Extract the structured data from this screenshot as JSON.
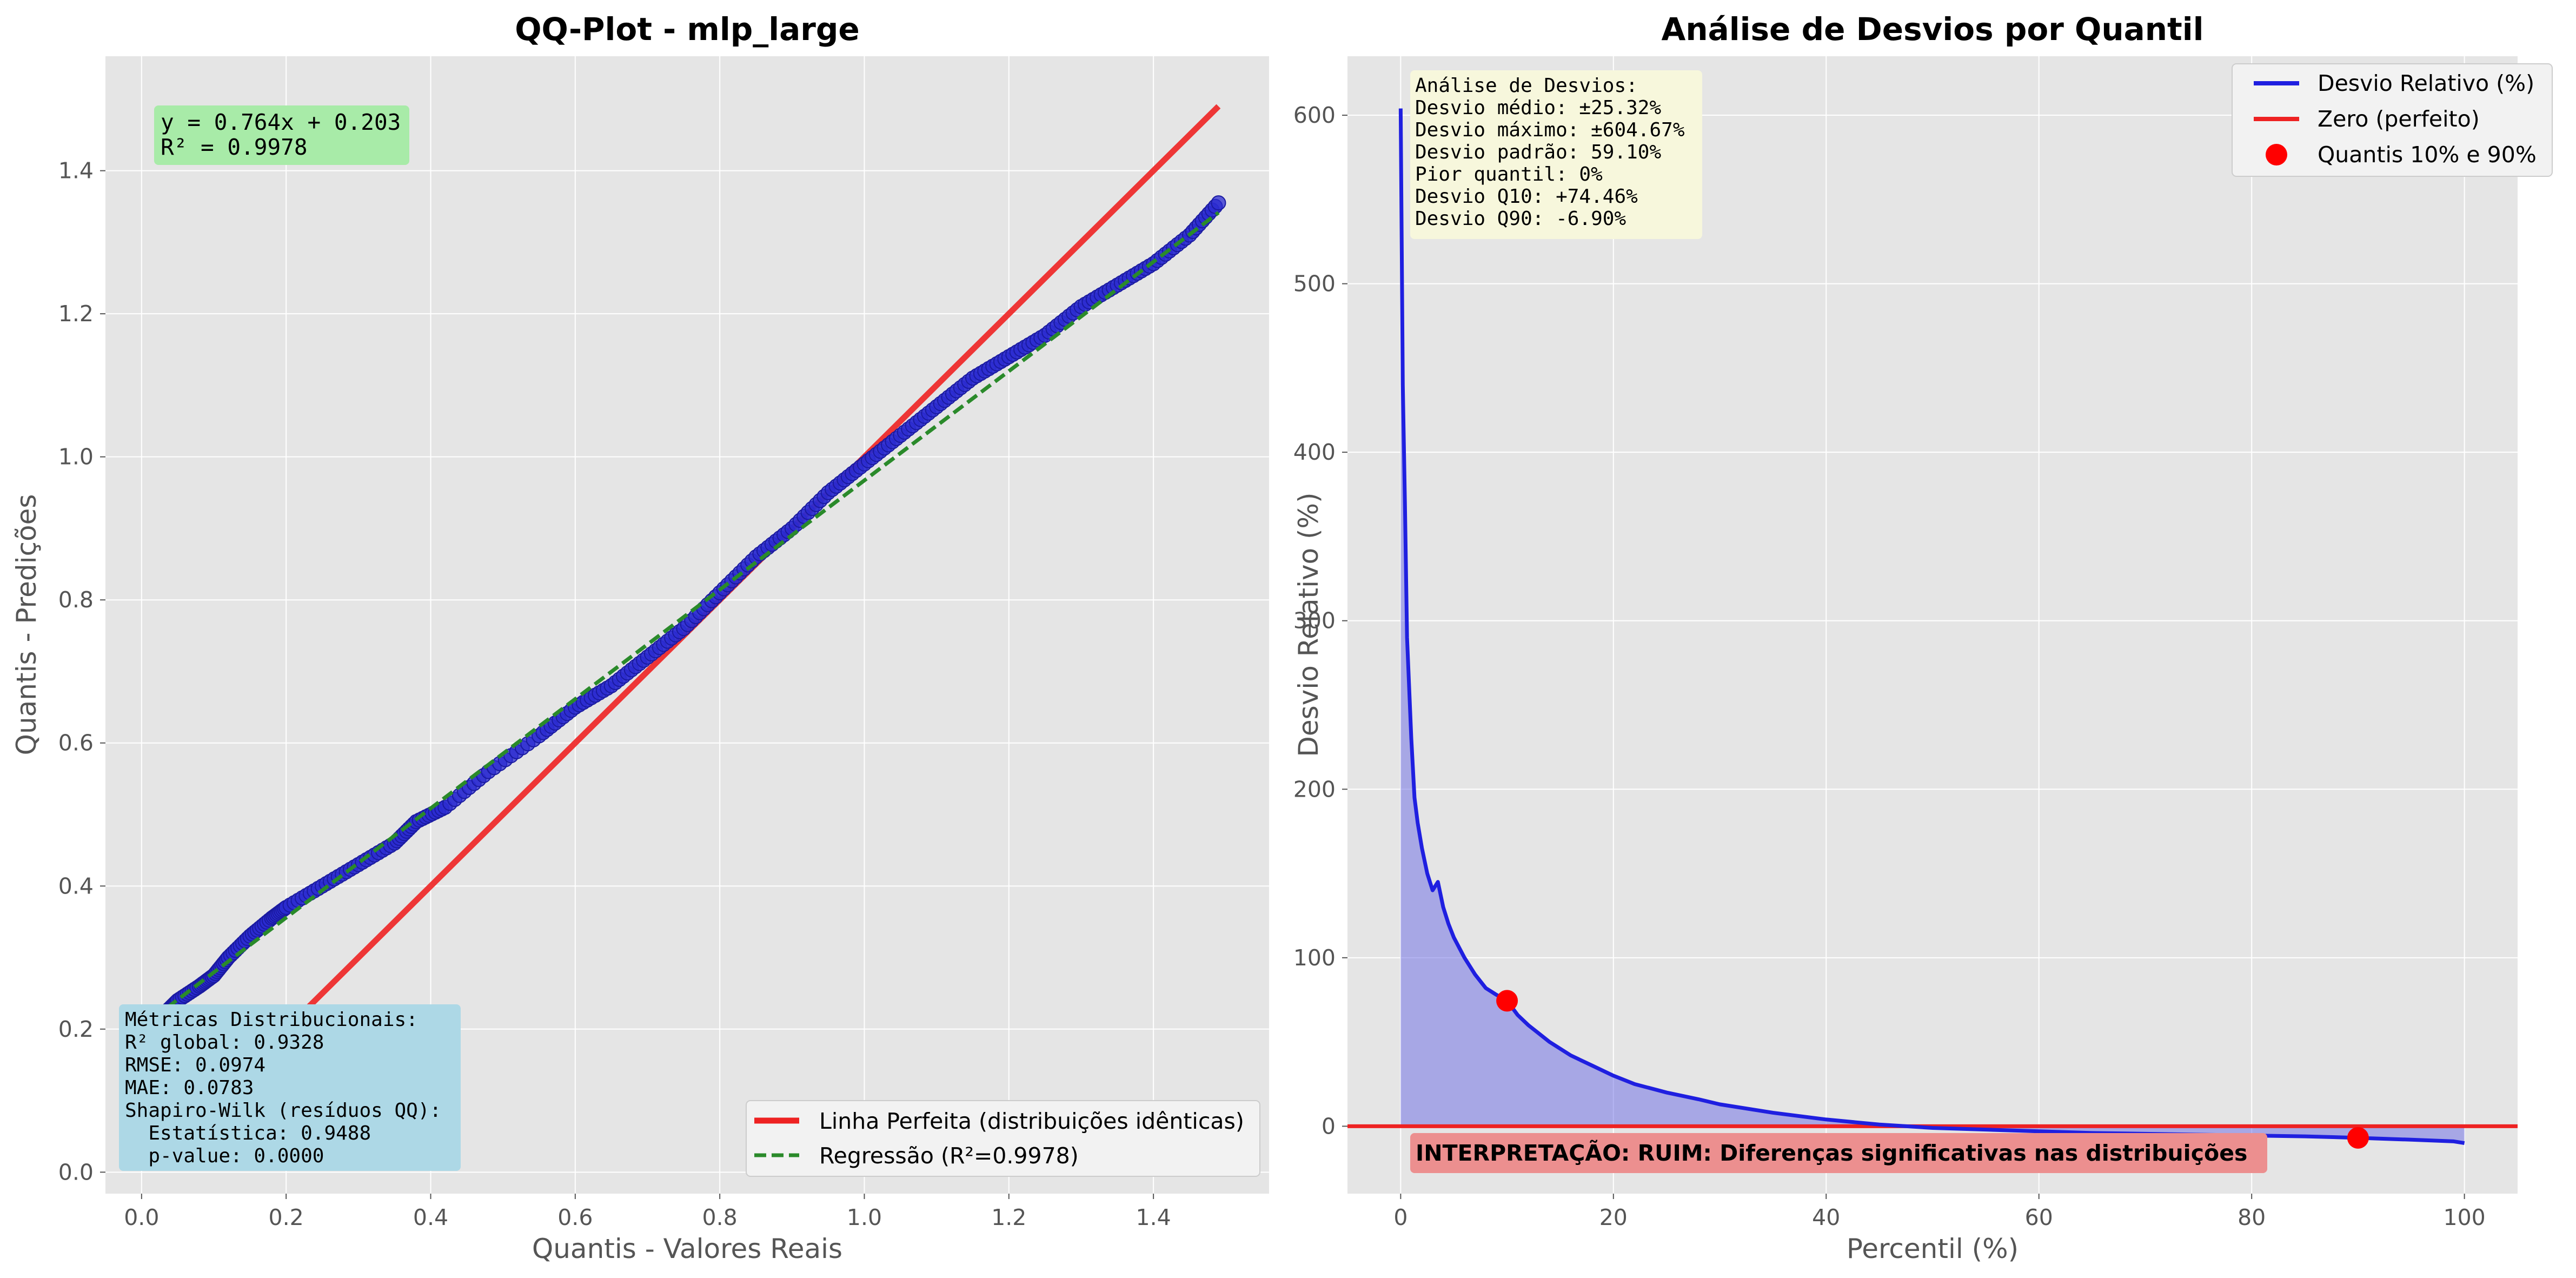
{
  "chart_data": [
    {
      "type": "scatter",
      "title": "QQ-Plot - mlp_large",
      "xlabel": "Quantis - Valores Reais",
      "ylabel": "Quantis - Predições",
      "xlim": [
        -0.05,
        1.56
      ],
      "ylim": [
        -0.03,
        1.56
      ],
      "xticks": [
        "0.0",
        "0.2",
        "0.4",
        "0.6",
        "0.8",
        "1.0",
        "1.2",
        "1.4"
      ],
      "yticks": [
        "0.0",
        "0.2",
        "0.4",
        "0.6",
        "0.8",
        "1.0",
        "1.2",
        "1.4"
      ],
      "grid": true,
      "legend_position": "bottom-right",
      "equation_box": [
        "y = 0.764x + 0.203",
        "R² = 0.9978"
      ],
      "metrics_box": [
        "Métricas Distribucionais:",
        "R² global: 0.9328",
        "RMSE: 0.0974",
        "MAE: 0.0783",
        "Shapiro-Wilk (resíduos QQ):",
        "  Estatística: 0.9488",
        "  p-value: 0.0000"
      ],
      "series": [
        {
          "name": "Quantis",
          "color": "#2b2bd0",
          "points": [
            [
              0.035,
              0.225
            ],
            [
              0.05,
              0.24
            ],
            [
              0.08,
              0.26
            ],
            [
              0.1,
              0.275
            ],
            [
              0.12,
              0.3
            ],
            [
              0.15,
              0.33
            ],
            [
              0.18,
              0.355
            ],
            [
              0.2,
              0.37
            ],
            [
              0.25,
              0.4
            ],
            [
              0.3,
              0.43
            ],
            [
              0.35,
              0.46
            ],
            [
              0.38,
              0.49
            ],
            [
              0.42,
              0.51
            ],
            [
              0.48,
              0.56
            ],
            [
              0.55,
              0.61
            ],
            [
              0.6,
              0.65
            ],
            [
              0.65,
              0.68
            ],
            [
              0.7,
              0.72
            ],
            [
              0.75,
              0.76
            ],
            [
              0.8,
              0.81
            ],
            [
              0.85,
              0.86
            ],
            [
              0.9,
              0.9
            ],
            [
              0.95,
              0.95
            ],
            [
              1.0,
              0.99
            ],
            [
              1.05,
              1.03
            ],
            [
              1.1,
              1.07
            ],
            [
              1.15,
              1.11
            ],
            [
              1.2,
              1.14
            ],
            [
              1.25,
              1.17
            ],
            [
              1.3,
              1.21
            ],
            [
              1.35,
              1.24
            ],
            [
              1.4,
              1.27
            ],
            [
              1.45,
              1.31
            ],
            [
              1.49,
              1.355
            ]
          ]
        },
        {
          "name": "Linha Perfeita (distribuições idênticas)",
          "color": "#ee2222",
          "line": [
            [
              0.035,
              0.035
            ],
            [
              1.49,
              1.49
            ]
          ]
        },
        {
          "name": "Regressão (R²=0.9978)",
          "color": "#2a8a2a",
          "line": [
            [
              0.035,
              0.2297
            ],
            [
              1.49,
              1.3414
            ]
          ]
        }
      ]
    },
    {
      "type": "line",
      "title": "Análise de Desvios por Quantil",
      "xlabel": "Percentil (%)",
      "ylabel": "Desvio Relativo (%)",
      "xlim": [
        -5,
        105
      ],
      "ylim": [
        -40,
        635
      ],
      "xticks": [
        "0",
        "20",
        "40",
        "60",
        "80",
        "100"
      ],
      "yticks": [
        "0",
        "100",
        "200",
        "300",
        "400",
        "500",
        "600"
      ],
      "grid": true,
      "legend_position": "top-right",
      "stats_box": [
        "Análise de Desvios:",
        "Desvio médio: ±25.32%",
        "Desvio máximo: ±604.67%",
        "Desvio padrão: 59.10%",
        "Pior quantil: 0%",
        "Desvio Q10: +74.46%",
        "Desvio Q90: -6.90%"
      ],
      "interpretation": "INTERPRETAÇÃO: RUIM: Diferenças significativas nas distribuições",
      "series": [
        {
          "name": "Desvio Relativo (%)",
          "color": "#1f1fe0",
          "x": [
            0,
            0.2,
            0.4,
            0.6,
            0.8,
            1,
            1.3,
            1.6,
            2,
            2.5,
            3,
            3.5,
            4,
            4.5,
            5,
            6,
            7,
            8,
            9,
            10,
            11,
            12,
            13,
            14,
            15,
            16,
            18,
            20,
            22,
            25,
            28,
            30,
            35,
            40,
            45,
            50,
            55,
            60,
            65,
            70,
            75,
            80,
            85,
            90,
            95,
            99,
            100
          ],
          "y": [
            604,
            440,
            370,
            290,
            260,
            230,
            195,
            180,
            165,
            150,
            140,
            145,
            130,
            120,
            112,
            100,
            90,
            82,
            78,
            74.46,
            66,
            60,
            55,
            50,
            46,
            42,
            36,
            30,
            25,
            20,
            16,
            13,
            8,
            4,
            1,
            -1,
            -2,
            -3,
            -4,
            -4.5,
            -5,
            -5.5,
            -6,
            -6.9,
            -8,
            -9,
            -10
          ]
        },
        {
          "name": "Zero (perfeito)",
          "color": "#ee2222",
          "y_const": 0
        },
        {
          "name": "Quantis 10% e 90%",
          "color": "#ff0000",
          "markers": [
            [
              10,
              74.46
            ],
            [
              90,
              -6.9
            ]
          ]
        }
      ]
    }
  ]
}
